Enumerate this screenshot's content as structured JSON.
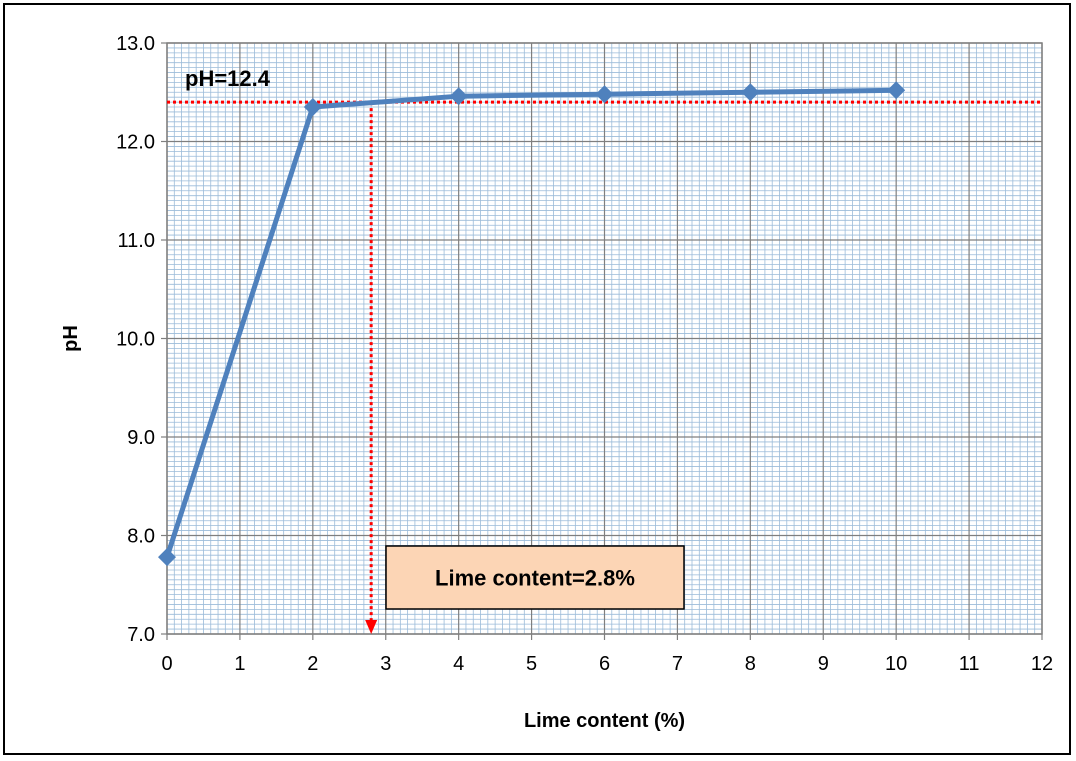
{
  "chart_data": {
    "type": "line",
    "xlabel": "Lime content (%)",
    "ylabel": "pH",
    "xlim": [
      0,
      12
    ],
    "ylim": [
      7.0,
      13.0
    ],
    "x_ticks": [
      "0",
      "1",
      "2",
      "3",
      "4",
      "5",
      "6",
      "7",
      "8",
      "9",
      "10",
      "11",
      "12"
    ],
    "y_ticks": [
      "7.0",
      "8.0",
      "9.0",
      "10.0",
      "11.0",
      "12.0",
      "13.0"
    ],
    "grid": "major and minor",
    "series": [
      {
        "x": [
          0,
          2,
          4,
          6,
          8,
          10
        ],
        "y": [
          7.78,
          12.35,
          12.46,
          12.48,
          12.5,
          12.52
        ],
        "color": "#4f81bd",
        "marker": "diamond"
      }
    ],
    "annotations": {
      "ph_label": "pH=12.4",
      "ph_value": 12.4,
      "lime_label": "Lime content=2.8%",
      "lime_value": 2.8,
      "reference_line_color": "#ff0000",
      "box_fill": "#fcd5b5"
    }
  }
}
